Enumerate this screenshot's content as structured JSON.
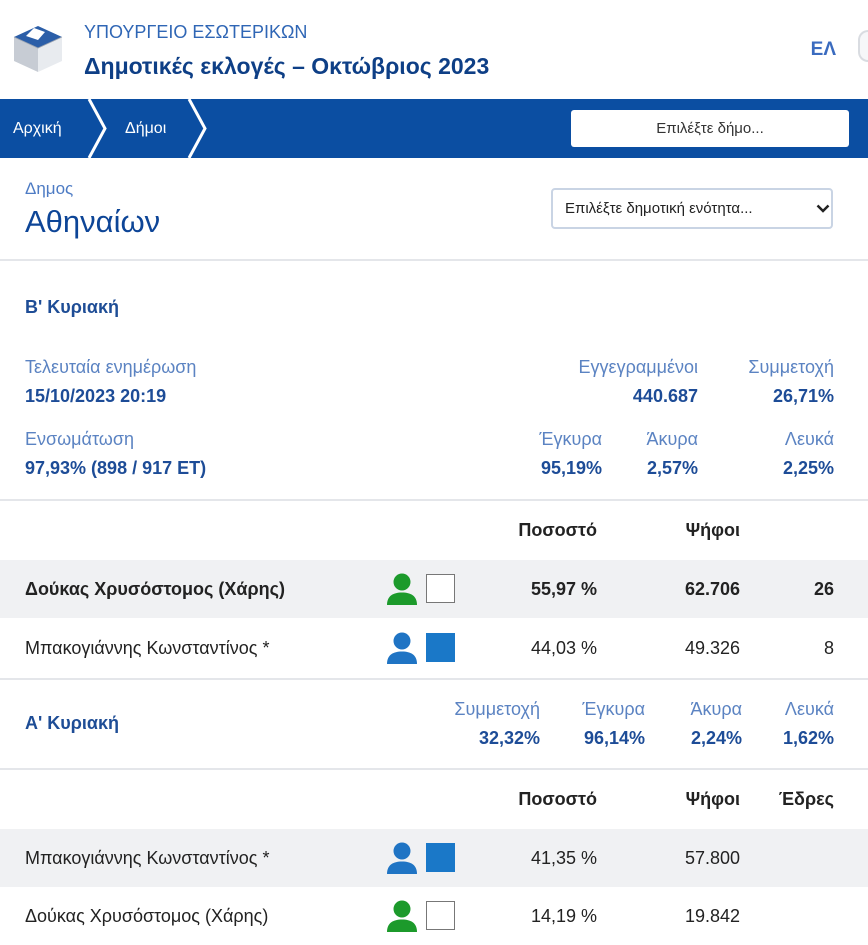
{
  "header": {
    "ministry": "ΥΠΟΥΡΓΕΙΟ ΕΣΩΤΕΡΙΚΩΝ",
    "title": "Δημοτικές εκλογές – Οκτώβριος 2023",
    "language": "ΕΛ",
    "logo_icon": "ballot-box-icon",
    "menu_icon": "menu-icon"
  },
  "nav": {
    "breadcrumbs": [
      "Αρχική",
      "Δήμοι"
    ],
    "municipality_search_placeholder": "Επιλέξτε δήμο..."
  },
  "municipality": {
    "label": "Δημος",
    "name": "Αθηναίων",
    "unit_select_value": "Επιλέξτε δημοτική ενότητα..."
  },
  "second_round": {
    "title": "Β' Κυριακή",
    "last_update": {
      "label": "Τελευταία ενημέρωση",
      "value": "15/10/2023 20:19"
    },
    "registered": {
      "label": "Εγγεγραμμένοι",
      "value": "440.687"
    },
    "turnout": {
      "label": "Συμμετοχή",
      "value": "26,71%"
    },
    "integration": {
      "label": "Ενσωμάτωση",
      "value": "97,93% (898 / 917 ΕΤ)"
    },
    "valid": {
      "label": "Έγκυρα",
      "value": "95,19%"
    },
    "invalid": {
      "label": "Άκυρα",
      "value": "2,57%"
    },
    "blank": {
      "label": "Λευκά",
      "value": "2,25%"
    },
    "columns": {
      "percent": "Ποσοστό",
      "votes": "Ψήφοι"
    },
    "candidates": [
      {
        "name": "Δούκας Χρυσόστομος (Χάρης)",
        "percent": "55,97 %",
        "votes": "62.706",
        "seats": "26",
        "icon_color": "#1c9a2b",
        "box_color": "#ffffff"
      },
      {
        "name": "Μπακογιάννης Κωνσταντίνος *",
        "percent": "44,03 %",
        "votes": "49.326",
        "seats": "8",
        "icon_color": "#1f74c4",
        "box_color": "#1a78c8"
      }
    ]
  },
  "first_round": {
    "title": "Α' Κυριακή",
    "turnout": {
      "label": "Συμμετοχή",
      "value": "32,32%"
    },
    "valid": {
      "label": "Έγκυρα",
      "value": "96,14%"
    },
    "invalid": {
      "label": "Άκυρα",
      "value": "2,24%"
    },
    "blank": {
      "label": "Λευκά",
      "value": "1,62%"
    },
    "columns": {
      "percent": "Ποσοστό",
      "votes": "Ψήφοι",
      "seats": "Έδρες"
    },
    "candidates": [
      {
        "name": "Μπακογιάννης Κωνσταντίνος *",
        "percent": "41,35 %",
        "votes": "57.800",
        "icon_color": "#1f74c4",
        "box_color": "#1a78c8"
      },
      {
        "name": "Δούκας Χρυσόστομος (Χάρης)",
        "percent": "14,19 %",
        "votes": "19.842",
        "icon_color": "#1c9a2b",
        "box_color": "#ffffff"
      }
    ]
  },
  "colors": {
    "brand": "#0b4ea2",
    "ministry": "#2f66b5",
    "heading": "#0e3f86",
    "label": "#5b83c2",
    "value": "#1d4c97",
    "row": "#f0f1f3",
    "divider": "#e4e6ea"
  }
}
